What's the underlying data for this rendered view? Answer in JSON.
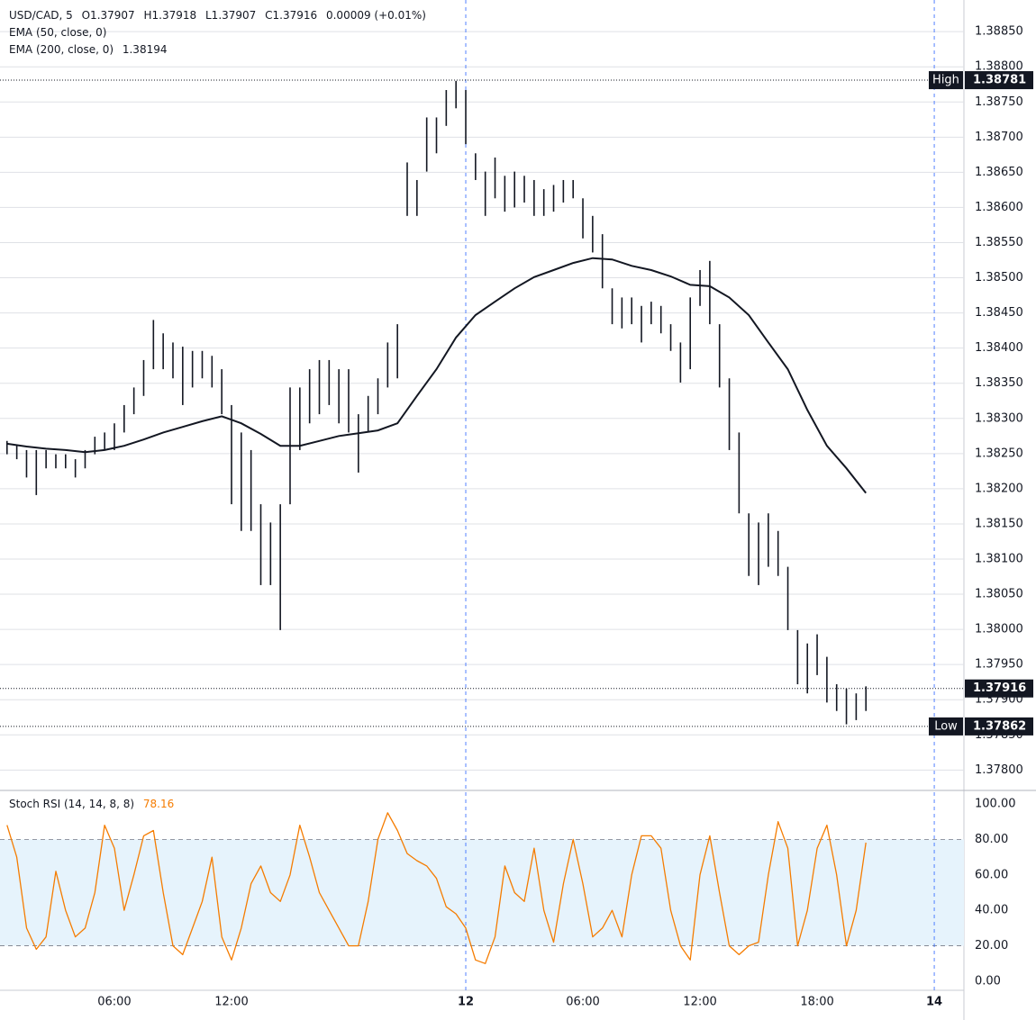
{
  "chart_data": [
    {
      "type": "range",
      "title": "USD/CAD, 5",
      "readout": [
        "O1.37907",
        "H1.37918",
        "L1.37907",
        "C1.37916",
        "0.00009 (+0.01%)"
      ],
      "indicators": [
        "EMA (50, close, 0)",
        "EMA (200, close, 0)"
      ],
      "ema_last": 1.38194,
      "color": "#131722",
      "x": [
        0.5,
        1,
        1.5,
        2,
        2.5,
        3,
        3.5,
        4,
        4.5,
        5,
        5.5,
        6,
        6.5,
        7,
        7.5,
        8,
        8.5,
        9,
        9.5,
        10,
        10.5,
        11,
        11.5,
        12,
        12.5,
        13,
        13.5,
        14,
        14.5,
        15,
        15.5,
        16,
        16.5,
        17,
        17.5,
        18,
        18.5,
        19,
        19.5,
        20,
        20.5,
        21,
        21.5,
        22,
        22.5,
        23,
        23.5,
        24,
        24.5,
        25,
        25.5,
        26,
        26.5,
        27,
        27.5,
        28,
        28.5,
        29,
        29.5,
        30,
        30.5,
        31,
        31.5,
        32,
        32.5,
        33,
        33.5,
        34,
        34.5,
        35,
        35.5,
        36,
        36.5,
        37,
        37.5,
        38,
        38.5,
        39,
        39.5,
        40,
        40.5,
        41,
        41.5,
        42,
        42.5,
        43,
        43.5,
        44,
        44.5
      ],
      "high": [
        1.38268,
        1.38262,
        1.38255,
        1.38255,
        1.38255,
        1.38249,
        1.38249,
        1.38242,
        1.38255,
        1.38274,
        1.3828,
        1.38293,
        1.38319,
        1.38344,
        1.38383,
        1.3844,
        1.38421,
        1.38408,
        1.38402,
        1.38396,
        1.38396,
        1.38389,
        1.3837,
        1.38319,
        1.3828,
        1.38255,
        1.38178,
        1.38152,
        1.38178,
        1.38344,
        1.38344,
        1.3837,
        1.38383,
        1.38383,
        1.3837,
        1.3837,
        1.38306,
        1.38332,
        1.38357,
        1.38408,
        1.38434,
        1.38664,
        1.38639,
        1.38728,
        1.38728,
        1.38767,
        1.3878,
        1.38767,
        1.38677,
        1.38651,
        1.38671,
        1.38645,
        1.38651,
        1.38645,
        1.38639,
        1.38626,
        1.38632,
        1.38639,
        1.38639,
        1.38613,
        1.38588,
        1.38562,
        1.38485,
        1.38472,
        1.38472,
        1.3846,
        1.38466,
        1.3846,
        1.38434,
        1.38408,
        1.38472,
        1.38511,
        1.38524,
        1.38434,
        1.38357,
        1.3828,
        1.38165,
        1.38152,
        1.38165,
        1.3814,
        1.38089,
        1.37999,
        1.3798,
        1.37993,
        1.37961,
        1.37922,
        1.37916,
        1.37909,
        1.37919
      ],
      "low": [
        1.38249,
        1.38242,
        1.38216,
        1.38191,
        1.38229,
        1.38229,
        1.38229,
        1.38216,
        1.38229,
        1.38249,
        1.38255,
        1.38255,
        1.3828,
        1.38306,
        1.38332,
        1.3837,
        1.3837,
        1.38357,
        1.38319,
        1.38344,
        1.38357,
        1.38344,
        1.38306,
        1.38178,
        1.3814,
        1.3814,
        1.38063,
        1.38063,
        1.37999,
        1.38178,
        1.38255,
        1.38293,
        1.38306,
        1.38319,
        1.38293,
        1.3828,
        1.38223,
        1.3828,
        1.38306,
        1.38344,
        1.38357,
        1.38588,
        1.38588,
        1.38651,
        1.38677,
        1.38716,
        1.38741,
        1.3869,
        1.38639,
        1.38588,
        1.38613,
        1.38594,
        1.386,
        1.38607,
        1.38588,
        1.38588,
        1.38594,
        1.38607,
        1.38613,
        1.38556,
        1.38536,
        1.38485,
        1.38434,
        1.38428,
        1.38434,
        1.38408,
        1.38434,
        1.38421,
        1.38396,
        1.38351,
        1.3837,
        1.3846,
        1.38434,
        1.38344,
        1.38255,
        1.38165,
        1.38076,
        1.38063,
        1.38089,
        1.38076,
        1.37999,
        1.37922,
        1.37909,
        1.37935,
        1.37896,
        1.37884,
        1.37865,
        1.37871,
        1.37884
      ],
      "ema": {
        "color": "#131722",
        "x": [
          0.5,
          1.5,
          2.5,
          3.5,
          4.5,
          5.5,
          6.5,
          7.5,
          8.5,
          9.5,
          10.5,
          11.5,
          12.5,
          13.5,
          14.5,
          15.5,
          16.5,
          17.5,
          18.5,
          19.5,
          20.5,
          21.5,
          22.5,
          23.5,
          24.5,
          25.5,
          26.5,
          27.5,
          28.5,
          29.5,
          30.5,
          31.5,
          32.5,
          33.5,
          34.5,
          35.5,
          36.5,
          37.5,
          38.5,
          39.5,
          40.5,
          41.5,
          42.5,
          43.5,
          44.5
        ],
        "values": [
          1.38264,
          1.3826,
          1.38257,
          1.38255,
          1.38252,
          1.38255,
          1.38261,
          1.3827,
          1.3828,
          1.38288,
          1.38296,
          1.38303,
          1.38293,
          1.38278,
          1.38261,
          1.38261,
          1.38268,
          1.38275,
          1.38279,
          1.38283,
          1.38293,
          1.38332,
          1.3837,
          1.38415,
          1.38447,
          1.38466,
          1.38485,
          1.38501,
          1.38511,
          1.38521,
          1.38528,
          1.38526,
          1.38517,
          1.38511,
          1.38502,
          1.3849,
          1.38488,
          1.38472,
          1.38447,
          1.38408,
          1.3837,
          1.38312,
          1.38261,
          1.38229,
          1.38194
        ]
      },
      "markers": [
        {
          "label": "High",
          "value": 1.38781
        },
        {
          "label": "Low",
          "value": 1.37862
        },
        {
          "value": 1.37916
        }
      ],
      "xlim": [
        0.14,
        49.52
      ],
      "ylim": [
        1.37771,
        1.38895
      ],
      "yticks": [
        {
          "value": 1.378,
          "label": "1.37800"
        },
        {
          "value": 1.3785,
          "label": "1.37850"
        },
        {
          "value": 1.379,
          "label": "1.37900"
        },
        {
          "value": 1.3795,
          "label": "1.37950"
        },
        {
          "value": 1.38,
          "label": "1.38000"
        },
        {
          "value": 1.3805,
          "label": "1.38050"
        },
        {
          "value": 1.381,
          "label": "1.38100"
        },
        {
          "value": 1.3815,
          "label": "1.38150"
        },
        {
          "value": 1.382,
          "label": "1.38200"
        },
        {
          "value": 1.3825,
          "label": "1.38250"
        },
        {
          "value": 1.383,
          "label": "1.38300"
        },
        {
          "value": 1.3835,
          "label": "1.38350"
        },
        {
          "value": 1.384,
          "label": "1.38400"
        },
        {
          "value": 1.3845,
          "label": "1.38450"
        },
        {
          "value": 1.385,
          "label": "1.38500"
        },
        {
          "value": 1.3855,
          "label": "1.38550"
        },
        {
          "value": 1.386,
          "label": "1.38600"
        },
        {
          "value": 1.3865,
          "label": "1.38650"
        },
        {
          "value": 1.387,
          "label": "1.38700"
        },
        {
          "value": 1.3875,
          "label": "1.38750"
        },
        {
          "value": 1.388,
          "label": "1.38800"
        },
        {
          "value": 1.3885,
          "label": "1.38850"
        }
      ],
      "grid": true
    },
    {
      "type": "line",
      "title": "Stoch RSI (14, 14, 8, 8)",
      "last_value": 78.16,
      "color": "#f57c00",
      "band": [
        20,
        80
      ],
      "band_color": "#e6f3fc",
      "x": [
        0.5,
        1,
        1.5,
        2,
        2.5,
        3,
        3.5,
        4,
        4.5,
        5,
        5.5,
        6,
        6.5,
        7,
        7.5,
        8,
        8.5,
        9,
        9.5,
        10,
        10.5,
        11,
        11.5,
        12,
        12.5,
        13,
        13.5,
        14,
        14.5,
        15,
        15.5,
        16,
        16.5,
        17,
        17.5,
        18,
        18.5,
        19,
        19.5,
        20,
        20.5,
        21,
        21.5,
        22,
        22.5,
        23,
        23.5,
        24,
        24.5,
        25,
        25.5,
        26,
        26.5,
        27,
        27.5,
        28,
        28.5,
        29,
        29.5,
        30,
        30.5,
        31,
        31.5,
        32,
        32.5,
        33,
        33.5,
        34,
        34.5,
        35,
        35.5,
        36,
        36.5,
        37,
        37.5,
        38,
        38.5,
        39,
        39.5,
        40,
        40.5,
        41,
        41.5,
        42,
        42.5,
        43,
        43.5,
        44,
        44.5
      ],
      "values": [
        88,
        70,
        30,
        18,
        25,
        62,
        40,
        25,
        30,
        50,
        88,
        75,
        40,
        60,
        82,
        85,
        50,
        20,
        15,
        30,
        45,
        70,
        25,
        12,
        30,
        55,
        65,
        50,
        45,
        60,
        88,
        70,
        50,
        40,
        30,
        20,
        20,
        45,
        80,
        95,
        85,
        72,
        68,
        65,
        58,
        42,
        38,
        30,
        12,
        10,
        25,
        65,
        50,
        45,
        75,
        40,
        22,
        55,
        80,
        55,
        25,
        30,
        40,
        25,
        60,
        82,
        82,
        75,
        40,
        20,
        12,
        60,
        82,
        50,
        20,
        15,
        20,
        22,
        60,
        90,
        75,
        20,
        40,
        75,
        88,
        60,
        20,
        40,
        78.16
      ],
      "xlim": [
        0.14,
        49.52
      ],
      "ylim": [
        -5.1,
        107.6
      ],
      "yticks": [
        {
          "value": 0,
          "label": "0.00"
        },
        {
          "value": 20,
          "label": "20.00"
        },
        {
          "value": 40,
          "label": "40.00"
        },
        {
          "value": 60,
          "label": "60.00"
        },
        {
          "value": 80,
          "label": "80.00"
        },
        {
          "value": 100,
          "label": "100.00"
        }
      ],
      "xticks": [
        {
          "value": 6,
          "label": "06:00"
        },
        {
          "value": 12,
          "label": "12:00"
        },
        {
          "value": 24,
          "label": "12"
        },
        {
          "value": 30,
          "label": "06:00"
        },
        {
          "value": 36,
          "label": "12:00"
        },
        {
          "value": 42,
          "label": "18:00"
        },
        {
          "value": 48,
          "label": "14"
        }
      ]
    }
  ]
}
